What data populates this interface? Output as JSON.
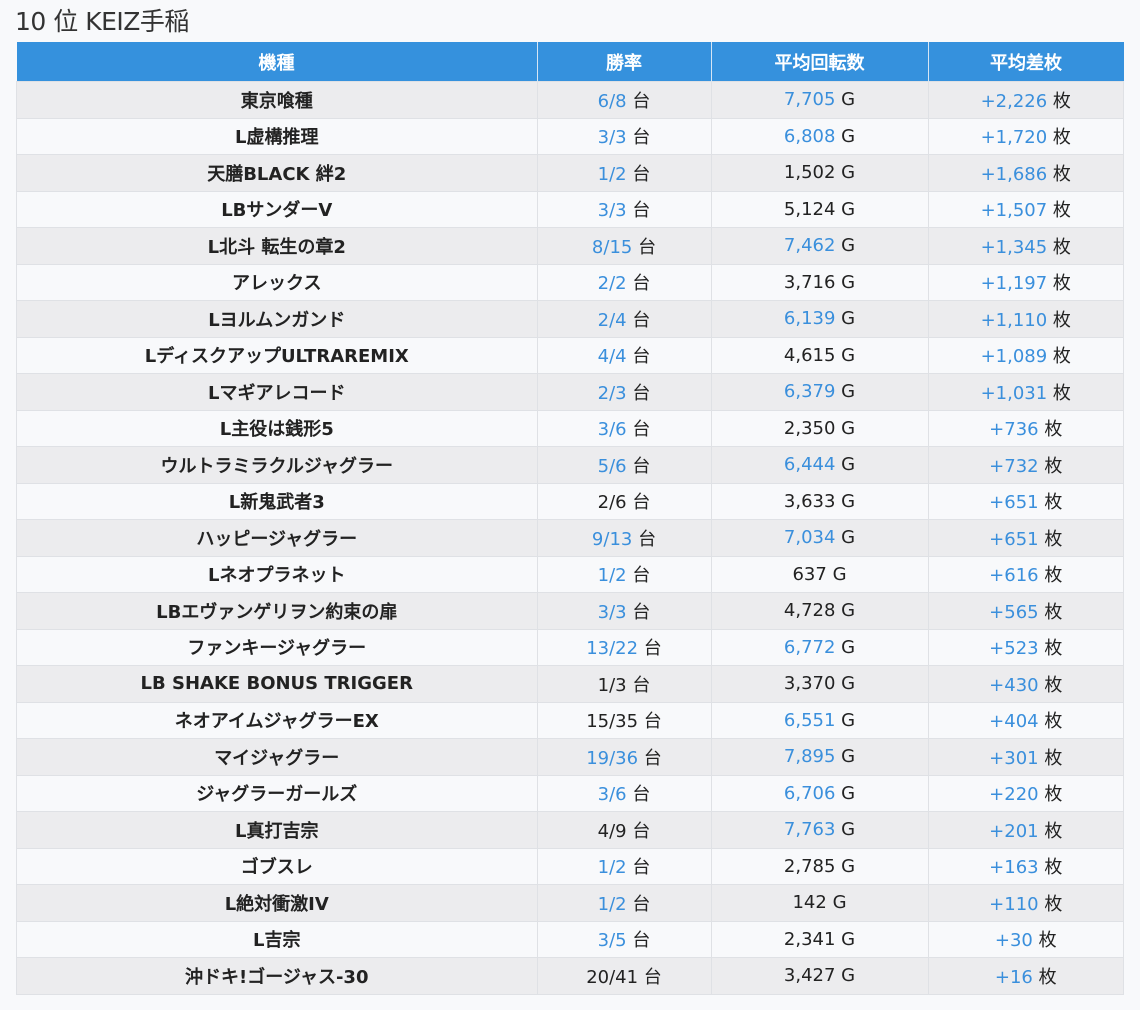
{
  "title": "10 位 KEIZ手稲",
  "headers": [
    "機種",
    "勝率",
    "平均回転数",
    "平均差枚"
  ],
  "units": {
    "rate": "台",
    "games": "G",
    "diff": "枚"
  },
  "rows": [
    {
      "name": "東京喰種",
      "rate": "6/8",
      "rate_hi": true,
      "games": "7,705",
      "games_hi": true,
      "diff": "+2,226"
    },
    {
      "name": "L虚構推理",
      "rate": "3/3",
      "rate_hi": true,
      "games": "6,808",
      "games_hi": true,
      "diff": "+1,720"
    },
    {
      "name": "天膳BLACK 絆2",
      "rate": "1/2",
      "rate_hi": true,
      "games": "1,502",
      "games_hi": false,
      "diff": "+1,686"
    },
    {
      "name": "LBサンダーV",
      "rate": "3/3",
      "rate_hi": true,
      "games": "5,124",
      "games_hi": false,
      "diff": "+1,507"
    },
    {
      "name": "L北斗 転生の章2",
      "rate": "8/15",
      "rate_hi": true,
      "games": "7,462",
      "games_hi": true,
      "diff": "+1,345"
    },
    {
      "name": "アレックス",
      "rate": "2/2",
      "rate_hi": true,
      "games": "3,716",
      "games_hi": false,
      "diff": "+1,197"
    },
    {
      "name": "Lヨルムンガンド",
      "rate": "2/4",
      "rate_hi": true,
      "games": "6,139",
      "games_hi": true,
      "diff": "+1,110"
    },
    {
      "name": "LディスクアップULTRAREMIX",
      "rate": "4/4",
      "rate_hi": true,
      "games": "4,615",
      "games_hi": false,
      "diff": "+1,089"
    },
    {
      "name": "Lマギアレコード",
      "rate": "2/3",
      "rate_hi": true,
      "games": "6,379",
      "games_hi": true,
      "diff": "+1,031"
    },
    {
      "name": "L主役は銭形5",
      "rate": "3/6",
      "rate_hi": true,
      "games": "2,350",
      "games_hi": false,
      "diff": "+736"
    },
    {
      "name": "ウルトラミラクルジャグラー",
      "rate": "5/6",
      "rate_hi": true,
      "games": "6,444",
      "games_hi": true,
      "diff": "+732"
    },
    {
      "name": "L新鬼武者3",
      "rate": "2/6",
      "rate_hi": false,
      "games": "3,633",
      "games_hi": false,
      "diff": "+651"
    },
    {
      "name": "ハッピージャグラー",
      "rate": "9/13",
      "rate_hi": true,
      "games": "7,034",
      "games_hi": true,
      "diff": "+651"
    },
    {
      "name": "Lネオプラネット",
      "rate": "1/2",
      "rate_hi": true,
      "games": "637",
      "games_hi": false,
      "diff": "+616"
    },
    {
      "name": "LBエヴァンゲリヲン約束の扉",
      "rate": "3/3",
      "rate_hi": true,
      "games": "4,728",
      "games_hi": false,
      "diff": "+565"
    },
    {
      "name": "ファンキージャグラー",
      "rate": "13/22",
      "rate_hi": true,
      "games": "6,772",
      "games_hi": true,
      "diff": "+523"
    },
    {
      "name": "LB SHAKE BONUS TRIGGER",
      "rate": "1/3",
      "rate_hi": false,
      "games": "3,370",
      "games_hi": false,
      "diff": "+430"
    },
    {
      "name": "ネオアイムジャグラーEX",
      "rate": "15/35",
      "rate_hi": false,
      "games": "6,551",
      "games_hi": true,
      "diff": "+404"
    },
    {
      "name": "マイジャグラー",
      "rate": "19/36",
      "rate_hi": true,
      "games": "7,895",
      "games_hi": true,
      "diff": "+301"
    },
    {
      "name": "ジャグラーガールズ",
      "rate": "3/6",
      "rate_hi": true,
      "games": "6,706",
      "games_hi": true,
      "diff": "+220"
    },
    {
      "name": "L真打吉宗",
      "rate": "4/9",
      "rate_hi": false,
      "games": "7,763",
      "games_hi": true,
      "diff": "+201"
    },
    {
      "name": "ゴブスレ",
      "rate": "1/2",
      "rate_hi": true,
      "games": "2,785",
      "games_hi": false,
      "diff": "+163"
    },
    {
      "name": "L絶対衝激IV",
      "rate": "1/2",
      "rate_hi": true,
      "games": "142",
      "games_hi": false,
      "diff": "+110"
    },
    {
      "name": "L吉宗",
      "rate": "3/5",
      "rate_hi": true,
      "games": "2,341",
      "games_hi": false,
      "diff": "+30"
    },
    {
      "name": "沖ドキ!ゴージャス-30",
      "rate": "20/41",
      "rate_hi": false,
      "games": "3,427",
      "games_hi": false,
      "diff": "+16"
    }
  ]
}
